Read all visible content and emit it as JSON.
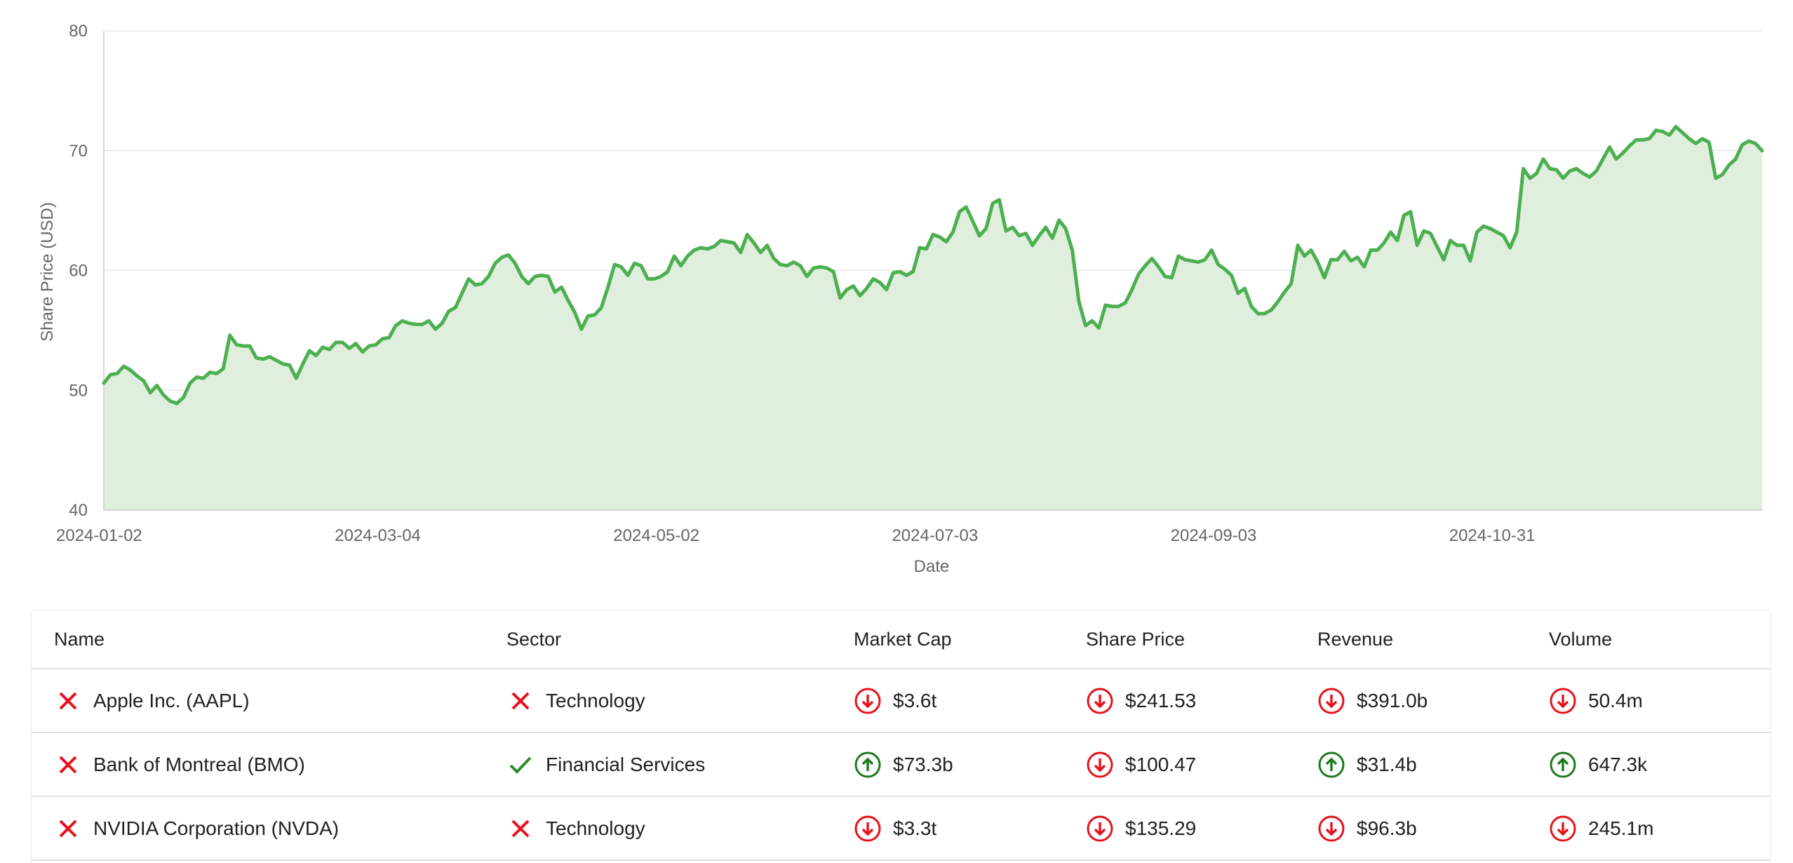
{
  "colors": {
    "line": "#4caf50",
    "fill": "#dfeedd",
    "grid": "#e6e6e6",
    "axis": "#cccccc",
    "up": "#1b7a1b",
    "down": "#e8101b",
    "check": "#2e8b2e",
    "cross": "#e8101b"
  },
  "chart_data": {
    "type": "area",
    "xlabel": "Date",
    "ylabel": "Share Price (USD)",
    "ylim": [
      40,
      80
    ],
    "yticks": [
      40,
      50,
      60,
      70,
      80
    ],
    "grid": true,
    "x_tick_labels": [
      "2024-01-02",
      "2024-03-04",
      "2024-05-02",
      "2024-07-03",
      "2024-09-03",
      "2024-10-31"
    ],
    "x_tick_indices": [
      0,
      42,
      84,
      126,
      168,
      210
    ],
    "series": [
      {
        "values": [
          50.6,
          51.3,
          51.4,
          52.0,
          51.7,
          51.2,
          50.8,
          49.8,
          50.4,
          49.6,
          49.1,
          48.9,
          49.4,
          50.6,
          51.1,
          51.0,
          51.5,
          51.4,
          51.8,
          54.6,
          53.8,
          53.7,
          53.7,
          52.7,
          52.6,
          52.8,
          52.5,
          52.2,
          52.1,
          51.0,
          52.2,
          53.3,
          52.9,
          53.6,
          53.4,
          54.0,
          54.0,
          53.5,
          53.9,
          53.2,
          53.7,
          53.8,
          54.3,
          54.4,
          55.4,
          55.8,
          55.6,
          55.5,
          55.5,
          55.8,
          55.1,
          55.6,
          56.6,
          56.9,
          58.1,
          59.3,
          58.8,
          58.9,
          59.5,
          60.6,
          61.1,
          61.3,
          60.6,
          59.5,
          58.9,
          59.5,
          59.6,
          59.5,
          58.2,
          58.6,
          57.5,
          56.5,
          55.1,
          56.2,
          56.3,
          56.9,
          58.6,
          60.5,
          60.3,
          59.6,
          60.6,
          60.4,
          59.3,
          59.3,
          59.5,
          59.9,
          61.2,
          60.4,
          61.2,
          61.7,
          61.9,
          61.8,
          62.0,
          62.5,
          62.4,
          62.3,
          61.5,
          63.0,
          62.3,
          61.5,
          62.1,
          61.0,
          60.5,
          60.4,
          60.7,
          60.4,
          59.5,
          60.2,
          60.3,
          60.2,
          59.9,
          57.7,
          58.4,
          58.7,
          57.9,
          58.5,
          59.3,
          59.0,
          58.4,
          59.8,
          59.9,
          59.6,
          59.9,
          61.9,
          61.8,
          63.0,
          62.8,
          62.4,
          63.2,
          64.9,
          65.3,
          64.1,
          62.9,
          63.5,
          65.6,
          65.9,
          63.3,
          63.6,
          62.9,
          63.1,
          62.1,
          62.9,
          63.6,
          62.7,
          64.2,
          63.5,
          61.7,
          57.4,
          55.4,
          55.8,
          55.2,
          57.1,
          57.0,
          57.0,
          57.3,
          58.4,
          59.7,
          60.4,
          61.0,
          60.3,
          59.5,
          59.4,
          61.2,
          60.9,
          60.8,
          60.7,
          60.9,
          61.7,
          60.5,
          60.1,
          59.6,
          58.1,
          58.5,
          57.0,
          56.4,
          56.4,
          56.7,
          57.4,
          58.2,
          58.9,
          62.1,
          61.2,
          61.7,
          60.7,
          59.4,
          60.9,
          60.9,
          61.6,
          60.8,
          61.1,
          60.3,
          61.7,
          61.7,
          62.3,
          63.2,
          62.5,
          64.6,
          64.9,
          62.1,
          63.3,
          63.1,
          62.0,
          60.9,
          62.5,
          62.1,
          62.1,
          60.8,
          63.2,
          63.7,
          63.5,
          63.2,
          62.9,
          61.9,
          63.2,
          68.5,
          67.7,
          68.1,
          69.3,
          68.5,
          68.4,
          67.7,
          68.3,
          68.5,
          68.1,
          67.8,
          68.3,
          69.3,
          70.3,
          69.3,
          69.8,
          70.4,
          70.9,
          70.9,
          71.0,
          71.7,
          71.6,
          71.3,
          72.0,
          71.5,
          71.0,
          70.6,
          71.0,
          70.7,
          67.7,
          68.0,
          68.8,
          69.3,
          70.5,
          70.8,
          70.6,
          70.0
        ]
      }
    ]
  },
  "table": {
    "headers": [
      "Name",
      "Sector",
      "Market Cap",
      "Share Price",
      "Revenue",
      "Volume"
    ],
    "rows": [
      {
        "name": "Apple Inc. (AAPL)",
        "name_icon": "cross-icon",
        "sector": "Technology",
        "sector_icon": "cross-icon",
        "market_cap": "$3.6t",
        "market_cap_dir": "down",
        "share_price": "$241.53",
        "share_price_dir": "down",
        "revenue": "$391.0b",
        "revenue_dir": "down",
        "volume": "50.4m",
        "volume_dir": "down"
      },
      {
        "name": "Bank of Montreal (BMO)",
        "name_icon": "cross-icon",
        "sector": "Financial Services",
        "sector_icon": "check-icon",
        "market_cap": "$73.3b",
        "market_cap_dir": "up",
        "share_price": "$100.47",
        "share_price_dir": "down",
        "revenue": "$31.4b",
        "revenue_dir": "up",
        "volume": "647.3k",
        "volume_dir": "up"
      },
      {
        "name": "NVIDIA Corporation (NVDA)",
        "name_icon": "cross-icon",
        "sector": "Technology",
        "sector_icon": "cross-icon",
        "market_cap": "$3.3t",
        "market_cap_dir": "down",
        "share_price": "$135.29",
        "share_price_dir": "down",
        "revenue": "$96.3b",
        "revenue_dir": "down",
        "volume": "245.1m",
        "volume_dir": "down"
      }
    ]
  }
}
